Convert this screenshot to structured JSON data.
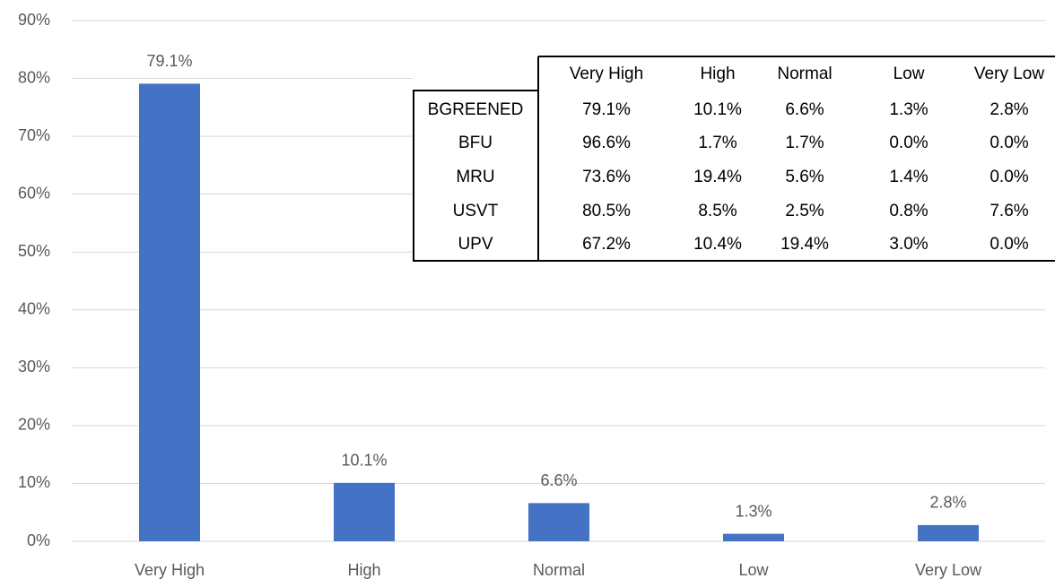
{
  "chart_data": {
    "type": "bar",
    "categories": [
      "Very High",
      "High",
      "Normal",
      "Low",
      "Very Low"
    ],
    "values": [
      79.1,
      10.1,
      6.6,
      1.3,
      2.8
    ],
    "value_labels": [
      "79.1%",
      "10.1%",
      "6.6%",
      "1.3%",
      "2.8%"
    ],
    "color": "#4472c4",
    "ylim": [
      0,
      90
    ],
    "yticks": [
      {
        "value": 0,
        "label": "0%"
      },
      {
        "value": 10,
        "label": "10%"
      },
      {
        "value": 20,
        "label": "20%"
      },
      {
        "value": 30,
        "label": "30%"
      },
      {
        "value": 40,
        "label": "40%"
      },
      {
        "value": 50,
        "label": "50%"
      },
      {
        "value": 60,
        "label": "60%"
      },
      {
        "value": 70,
        "label": "70%"
      },
      {
        "value": 80,
        "label": "80%"
      },
      {
        "value": 90,
        "label": "90%"
      }
    ],
    "grid": true
  },
  "table": {
    "columns": [
      "Very High",
      "High",
      "Normal",
      "Low",
      "Very Low"
    ],
    "rows": [
      {
        "name": "BGREENED",
        "cells": [
          "79.1%",
          "10.1%",
          "6.6%",
          "1.3%",
          "2.8%"
        ]
      },
      {
        "name": "BFU",
        "cells": [
          "96.6%",
          "1.7%",
          "1.7%",
          "0.0%",
          "0.0%"
        ]
      },
      {
        "name": "MRU",
        "cells": [
          "73.6%",
          "19.4%",
          "5.6%",
          "1.4%",
          "0.0%"
        ]
      },
      {
        "name": "USVT",
        "cells": [
          "80.5%",
          "8.5%",
          "2.5%",
          "0.8%",
          "7.6%"
        ]
      },
      {
        "name": "UPV",
        "cells": [
          "67.2%",
          "10.4%",
          "19.4%",
          "3.0%",
          "0.0%"
        ]
      }
    ]
  }
}
